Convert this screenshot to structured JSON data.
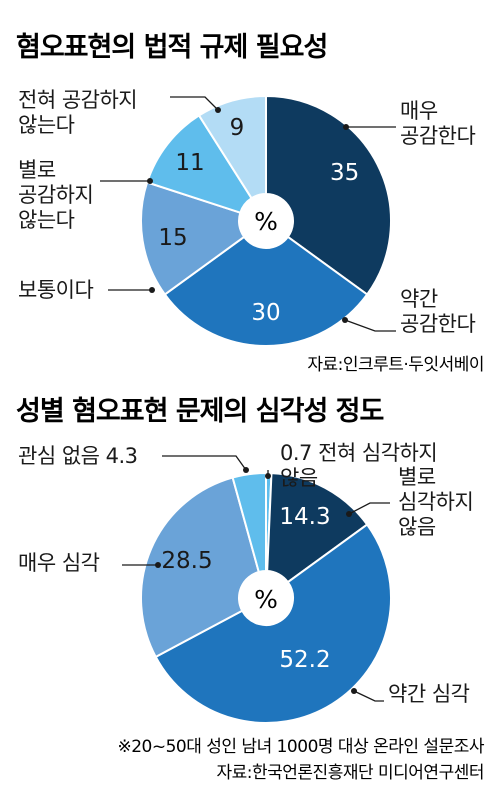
{
  "colors": {
    "navy": "#0e3a5f",
    "blue": "#1f75bd",
    "mid": "#6aa3d8",
    "light": "#5fbdec",
    "pale": "#b3dcf5",
    "text": "#1a1a1a",
    "white": "#ffffff"
  },
  "chart_data": [
    {
      "type": "pie",
      "title": "혐오표현의 법적 규제 필요성",
      "center_label": "%",
      "source": "자료:인크루트·두잇서베이",
      "slices": [
        {
          "label_lines": [
            "매우",
            "공감한다"
          ],
          "value": 35,
          "value_label": "35",
          "color": "#0e3a5f"
        },
        {
          "label_lines": [
            "약간",
            "공감한다"
          ],
          "value": 30,
          "value_label": "30",
          "color": "#1f75bd"
        },
        {
          "label_lines": [
            "보통이다"
          ],
          "value": 15,
          "value_label": "15",
          "color": "#6aa3d8"
        },
        {
          "label_lines": [
            "별로",
            "공감하지",
            "않는다"
          ],
          "value": 11,
          "value_label": "11",
          "color": "#5fbdec"
        },
        {
          "label_lines": [
            "전혀  공감하지",
            "않는다"
          ],
          "value": 9,
          "value_label": "9",
          "color": "#b3dcf5"
        }
      ]
    },
    {
      "type": "pie",
      "title": "성별 혐오표현 문제의 심각성 정도",
      "center_label": "%",
      "footnote": "※20~50대 성인 남녀 1000명 대상 온라인 설문조사",
      "source": "자료:한국언론진흥재단 미디어연구센터",
      "slices": [
        {
          "label_lines": [
            "0.7 전혀  심각하지",
            "않음"
          ],
          "value": 0.7,
          "value_label": "",
          "color": "#5fbdec"
        },
        {
          "label_lines": [
            "별로",
            "심각하지",
            "않음"
          ],
          "value": 14.3,
          "value_label": "14.3",
          "color": "#0e3a5f"
        },
        {
          "label_lines": [
            "약간  심각"
          ],
          "value": 52.2,
          "value_label": "52.2",
          "color": "#1f75bd"
        },
        {
          "label_lines": [
            "매우  심각"
          ],
          "value": 28.5,
          "value_label": "28.5",
          "color": "#6aa3d8"
        },
        {
          "label_lines": [
            "관심  없음  4.3"
          ],
          "value": 4.3,
          "value_label": "",
          "color": "#5fbdec"
        }
      ]
    }
  ]
}
